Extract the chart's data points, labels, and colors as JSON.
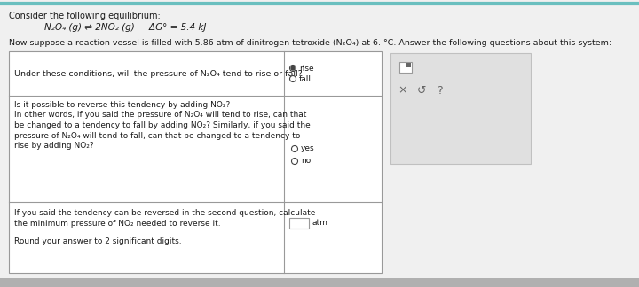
{
  "bg_color": "#f0f0f0",
  "white": "#ffffff",
  "light_gray": "#e0e0e0",
  "mid_gray": "#c0c0c0",
  "dark_gray": "#666666",
  "border_color": "#999999",
  "teal_line": "#6abfbf",
  "text_color": "#1a1a1a",
  "small_text": "#333333",
  "header_text": "Consider the following equilibrium:",
  "eq_line": "N₂O₄ (g) ⇌ 2NO₂ (g)     ΔG° = 5.4 kJ",
  "intro_line1": "Now suppose a reaction vessel is filled with 5.86 atm of dinitrogen tetroxide (N₂O₄) at 6. °C. Answer the following questions about this system:",
  "q1_text": "Under these conditions, will the pressure of N₂O₄ tend to rise or fall?",
  "q1_opt1": "rise",
  "q1_opt2": "fall",
  "q2_line1": "Is it possible to reverse this tendency by adding NO₂?",
  "q2_line2": "In other words, if you said the pressure of N₂O₄ will tend to rise, can that",
  "q2_line3": "be changed to a tendency to fall by adding NO₂? Similarly, if you said the",
  "q2_line4": "pressure of N₂O₄ will tend to fall, can that be changed to a tendency to",
  "q2_line5": "rise by adding NO₂?",
  "q2_opt1": "yes",
  "q2_opt2": "no",
  "q3_line1": "If you said the tendency can be reversed in the second question, calculate",
  "q3_line2": "the minimum pressure of NO₂ needed to reverse it.",
  "q3_line3": "Round your answer to 2 significant digits.",
  "q3_unit": "atm",
  "icon_x": "×",
  "icon_r": "↺",
  "icon_q": "?",
  "bottom_bar_color": "#b0b0b0",
  "teal_bar_color": "#6abfbf"
}
